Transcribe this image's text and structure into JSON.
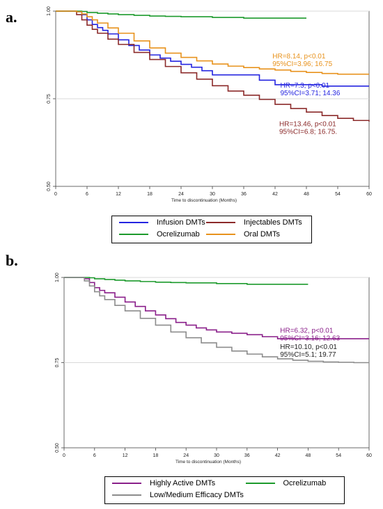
{
  "panels": {
    "a": {
      "label": "a."
    },
    "b": {
      "label": "b."
    }
  },
  "chart_data": [
    {
      "type": "line",
      "panel": "a.",
      "xlabel": "Time to discontinuation (Months)",
      "ylabel": "",
      "xlim": [
        0,
        60
      ],
      "ylim": [
        0.5,
        1.0
      ],
      "xticks": [
        0,
        6,
        12,
        18,
        24,
        30,
        36,
        42,
        48,
        54,
        60
      ],
      "yticks": [
        0.5,
        0.75,
        1.0
      ],
      "ytick_labels": [
        "0.50",
        "0.75",
        "1.00"
      ],
      "reference_lines": [
        0.75,
        1.0
      ],
      "legend_position": "bottom",
      "series": [
        {
          "name": "Infusion DMTs",
          "color": "#2424e0",
          "step": true,
          "x": [
            0,
            3,
            4,
            5,
            6,
            7,
            8,
            9,
            10,
            12,
            14,
            16,
            18,
            20,
            22,
            24,
            26,
            28,
            30,
            33,
            36,
            39,
            42,
            45,
            48,
            51,
            54,
            57,
            60
          ],
          "y": [
            1.0,
            1.0,
            0.998,
            0.99,
            0.975,
            0.962,
            0.953,
            0.945,
            0.935,
            0.918,
            0.902,
            0.889,
            0.875,
            0.866,
            0.857,
            0.848,
            0.84,
            0.83,
            0.818,
            0.818,
            0.818,
            0.803,
            0.79,
            0.79,
            0.79,
            0.786,
            0.786,
            0.786,
            0.786
          ]
        },
        {
          "name": "Injectables DMTs",
          "color": "#8b2a2a",
          "step": true,
          "x": [
            0,
            3,
            4,
            5,
            6,
            7,
            8,
            10,
            12,
            15,
            18,
            21,
            24,
            27,
            30,
            33,
            36,
            39,
            42,
            45,
            48,
            51,
            54,
            57,
            60
          ],
          "y": [
            1.0,
            1.0,
            0.99,
            0.975,
            0.96,
            0.948,
            0.937,
            0.92,
            0.905,
            0.882,
            0.862,
            0.842,
            0.824,
            0.806,
            0.787,
            0.772,
            0.76,
            0.748,
            0.734,
            0.722,
            0.712,
            0.702,
            0.694,
            0.688,
            0.685
          ]
        },
        {
          "name": "Ocrelizumab",
          "color": "#1c9a2c",
          "step": true,
          "x": [
            0,
            3,
            5,
            6,
            8,
            10,
            12,
            15,
            18,
            21,
            24,
            30,
            36,
            42,
            48
          ],
          "y": [
            1.0,
            1.0,
            0.999,
            0.996,
            0.994,
            0.992,
            0.99,
            0.988,
            0.986,
            0.985,
            0.984,
            0.982,
            0.98,
            0.98,
            0.98
          ]
        },
        {
          "name": "Oral DMTs",
          "color": "#e8921c",
          "step": true,
          "x": [
            0,
            3,
            4,
            5,
            6,
            7,
            8,
            10,
            12,
            15,
            18,
            21,
            24,
            27,
            30,
            33,
            36,
            39,
            42,
            45,
            48,
            51,
            54,
            57,
            60
          ],
          "y": [
            1.0,
            1.0,
            0.998,
            0.992,
            0.984,
            0.975,
            0.966,
            0.952,
            0.937,
            0.915,
            0.895,
            0.88,
            0.868,
            0.858,
            0.849,
            0.843,
            0.839,
            0.835,
            0.832,
            0.828,
            0.825,
            0.822,
            0.82,
            0.82,
            0.82
          ]
        }
      ],
      "annotations": [
        {
          "lines": [
            "HR=8.14, p<0.01",
            "95%CI=3.96; 16.75"
          ],
          "color": "#e8921c",
          "x": 41.5,
          "y": 0.865
        },
        {
          "lines": [
            "HR=7.3, p<0.01",
            "95%CI=3.71; 14.36"
          ],
          "color": "#2424e0",
          "x": 43,
          "y": 0.782
        },
        {
          "lines": [
            "HR=13.46, p<0.01",
            "95%CI=6.8; 16.75."
          ],
          "color": "#8b2a2a",
          "x": 42.8,
          "y": 0.672
        }
      ]
    },
    {
      "type": "line",
      "panel": "b.",
      "xlabel": "Time to discontinuation (Months)",
      "ylabel": "",
      "xlim": [
        0,
        60
      ],
      "ylim": [
        0.5,
        1.0
      ],
      "xticks": [
        0,
        6,
        12,
        18,
        24,
        30,
        36,
        42,
        48,
        54,
        60
      ],
      "yticks": [
        0.5,
        0.75,
        1.0
      ],
      "ytick_labels": [
        "0.50",
        "0.75",
        "1.00"
      ],
      "reference_lines": [
        0.75,
        1.0
      ],
      "legend_position": "bottom",
      "series": [
        {
          "name": "Highly Active DMTs",
          "color": "#8a1f8a",
          "step": true,
          "x": [
            0,
            3,
            4,
            5,
            6,
            7,
            8,
            10,
            12,
            14,
            16,
            18,
            20,
            22,
            24,
            26,
            28,
            30,
            33,
            36,
            39,
            42,
            45,
            48,
            51,
            54,
            57,
            60
          ],
          "y": [
            1.0,
            1.0,
            0.996,
            0.985,
            0.97,
            0.962,
            0.955,
            0.942,
            0.928,
            0.915,
            0.902,
            0.89,
            0.879,
            0.868,
            0.86,
            0.852,
            0.846,
            0.84,
            0.836,
            0.832,
            0.826,
            0.82,
            0.82,
            0.82,
            0.82,
            0.82,
            0.82,
            0.82
          ]
        },
        {
          "name": "Ocrelizumab",
          "color": "#1c9a2c",
          "step": true,
          "x": [
            0,
            3,
            5,
            6,
            8,
            10,
            12,
            15,
            18,
            21,
            24,
            30,
            36,
            42,
            48
          ],
          "y": [
            1.0,
            1.0,
            0.999,
            0.996,
            0.994,
            0.992,
            0.99,
            0.988,
            0.986,
            0.985,
            0.984,
            0.982,
            0.98,
            0.98,
            0.98
          ]
        },
        {
          "name": "Low/Medium Efficacy DMTs",
          "color": "#8c8c8c",
          "step": true,
          "x": [
            0,
            3,
            4,
            5,
            6,
            7,
            8,
            10,
            12,
            15,
            18,
            21,
            24,
            27,
            30,
            33,
            36,
            39,
            42,
            45,
            48,
            51,
            54,
            57,
            60
          ],
          "y": [
            1.0,
            1.0,
            0.99,
            0.975,
            0.958,
            0.946,
            0.935,
            0.918,
            0.902,
            0.88,
            0.86,
            0.84,
            0.823,
            0.808,
            0.795,
            0.784,
            0.775,
            0.767,
            0.761,
            0.757,
            0.754,
            0.752,
            0.751,
            0.75,
            0.75
          ]
        }
      ],
      "annotations": [
        {
          "lines": [
            "HR=6.32, p<0.01",
            "95%CI=3.16; 12.63"
          ],
          "color": "#8a1f8a",
          "x": 42.5,
          "y": 0.838
        },
        {
          "lines": [
            "HR=10.10, p<0.01",
            "95%CI=5.1; 19.77"
          ],
          "color": "#222222",
          "x": 42.5,
          "y": 0.79
        }
      ]
    }
  ]
}
